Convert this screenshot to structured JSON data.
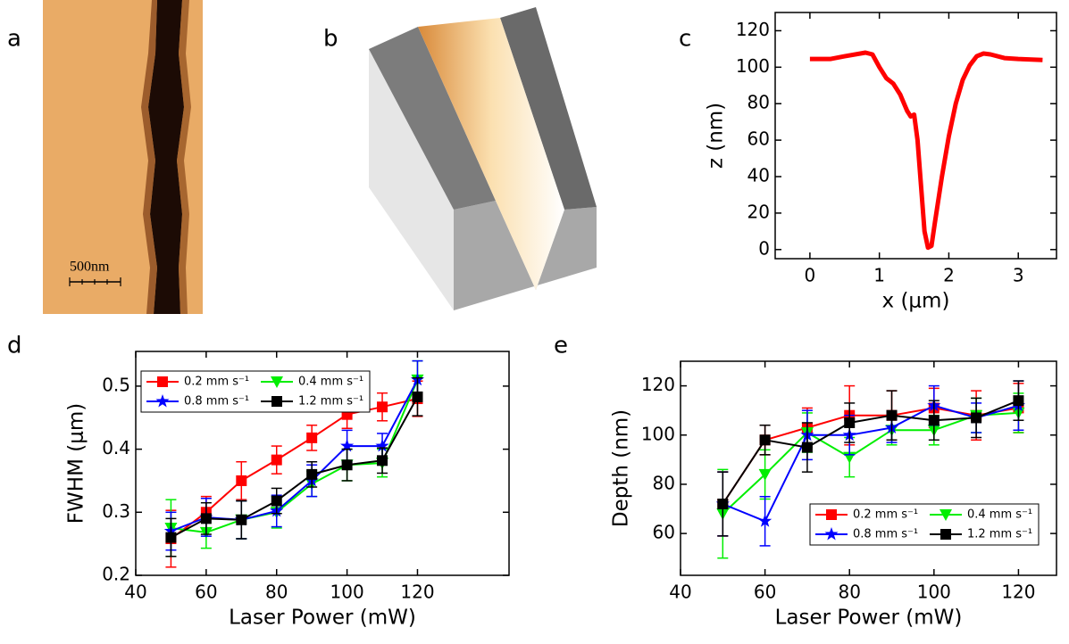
{
  "images": [
    {
      "panel": "a",
      "scale_bar": "500nm"
    },
    {
      "panel": "b"
    }
  ],
  "chart_data": [
    {
      "type": "line",
      "panel": "c",
      "xlabel": "x (μm)",
      "ylabel": "z (nm)",
      "xlim": [
        -0.5,
        3.55
      ],
      "ylim": [
        -5,
        130
      ],
      "xticks": [
        0,
        1,
        2,
        3
      ],
      "yticks": [
        0,
        20,
        40,
        60,
        80,
        100,
        120
      ],
      "x": [
        0,
        0.3,
        0.5,
        0.8,
        0.9,
        1.0,
        1.1,
        1.2,
        1.3,
        1.4,
        1.45,
        1.5,
        1.55,
        1.6,
        1.65,
        1.7,
        1.75,
        1.8,
        1.9,
        2.0,
        2.1,
        2.2,
        2.3,
        2.4,
        2.5,
        2.6,
        2.8,
        3.0,
        3.35
      ],
      "series": [
        {
          "color": "#ff0000",
          "values": [
            104.5,
            104.5,
            106,
            108,
            107,
            100,
            94,
            91,
            85,
            76,
            73,
            74,
            60,
            35,
            10,
            1,
            2,
            15,
            40,
            62,
            80,
            93,
            101,
            106,
            107.5,
            107,
            105,
            104.5,
            104
          ]
        }
      ]
    },
    {
      "type": "line",
      "panel": "d",
      "xlabel": "Laser Power (mW)",
      "ylabel": "FWHM (μm)",
      "xlim": [
        40,
        146
      ],
      "ylim": [
        0.2,
        0.555
      ],
      "xticks": [
        40,
        60,
        80,
        100,
        120
      ],
      "yticks": [
        0.2,
        0.3,
        0.4,
        0.5
      ],
      "legend": "upper left",
      "x": [
        50,
        60,
        70,
        80,
        90,
        100,
        110,
        120
      ],
      "series": [
        {
          "name": "0.2 mm s⁻¹",
          "color": "#ff0000",
          "marker": "square",
          "values": [
            0.258,
            0.3,
            0.35,
            0.383,
            0.418,
            0.455,
            0.467,
            0.48
          ],
          "errors": [
            0.045,
            0.025,
            0.03,
            0.022,
            0.02,
            0.022,
            0.022,
            0.028
          ]
        },
        {
          "name": "0.4 mm s⁻¹",
          "color": "#00ee00",
          "marker": "triangle-down",
          "values": [
            0.275,
            0.268,
            0.288,
            0.3,
            0.345,
            0.375,
            0.378,
            0.51
          ],
          "errors": [
            0.045,
            0.025,
            0.03,
            0.025,
            0.02,
            0.025,
            0.022,
            0.03
          ]
        },
        {
          "name": "0.8 mm s⁻¹",
          "color": "#0000ff",
          "marker": "star",
          "values": [
            0.27,
            0.292,
            0.288,
            0.302,
            0.35,
            0.405,
            0.405,
            0.51
          ],
          "errors": [
            0.03,
            0.03,
            0.03,
            0.025,
            0.025,
            0.025,
            0.02,
            0.03
          ]
        },
        {
          "name": "1.2 mm s⁻¹",
          "color": "#000000",
          "marker": "square",
          "values": [
            0.26,
            0.29,
            0.288,
            0.318,
            0.36,
            0.375,
            0.382,
            0.483
          ],
          "errors": [
            0.03,
            0.025,
            0.03,
            0.02,
            0.02,
            0.025,
            0.02,
            0.03
          ]
        }
      ]
    },
    {
      "type": "line",
      "panel": "e",
      "xlabel": "Laser Power (mW)",
      "ylabel": "Depth (nm)",
      "xlim": [
        40,
        129
      ],
      "ylim": [
        43,
        130
      ],
      "xticks": [
        40,
        60,
        80,
        100,
        120
      ],
      "yticks": [
        60,
        80,
        100,
        120
      ],
      "legend": "lower right",
      "x": [
        50,
        60,
        70,
        80,
        90,
        100,
        110,
        120
      ],
      "series": [
        {
          "name": "0.2 mm s⁻¹",
          "color": "#ff0000",
          "marker": "square",
          "values": [
            72,
            98,
            103,
            108,
            108,
            111,
            108,
            111
          ],
          "errors": [
            13,
            6,
            8,
            12,
            10,
            8,
            10,
            10
          ]
        },
        {
          "name": "0.4 mm s⁻¹",
          "color": "#00ee00",
          "marker": "triangle-down",
          "values": [
            68,
            84,
            101,
            91,
            102,
            102,
            108,
            109
          ],
          "errors": [
            18,
            10,
            8,
            8,
            6,
            6,
            7,
            8
          ]
        },
        {
          "name": "0.8 mm s⁻¹",
          "color": "#0000ff",
          "marker": "star",
          "values": [
            72,
            65,
            100,
            100,
            103,
            112,
            107,
            112
          ],
          "errors": [
            13,
            10,
            10,
            8,
            6,
            8,
            6,
            10
          ]
        },
        {
          "name": "1.2 mm s⁻¹",
          "color": "#000000",
          "marker": "square",
          "values": [
            72,
            98,
            95,
            105,
            108,
            106,
            107,
            114
          ],
          "errors": [
            13,
            6,
            10,
            8,
            10,
            8,
            8,
            8
          ]
        }
      ]
    }
  ]
}
